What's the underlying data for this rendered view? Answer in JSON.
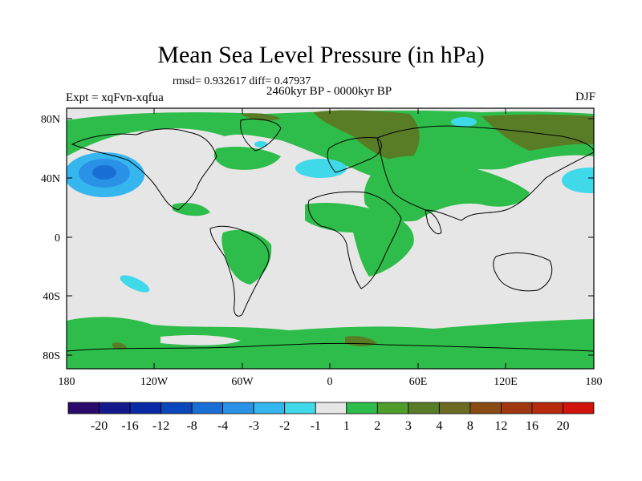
{
  "title": "Mean Sea Level Pressure (in hPa)",
  "stats": "rmsd= 0.932617  diff= 0.47937",
  "subtitle": "2460kyr BP - 0000kyr BP",
  "experiment": "Expt = xqFvn-xqfua",
  "season": "DJF",
  "map": {
    "lat_labels": [
      "80N",
      "40N",
      "0",
      "40S",
      "80S"
    ],
    "lon_labels": [
      "180",
      "120W",
      "60W",
      "0",
      "60E",
      "120E",
      "180"
    ]
  },
  "colorbar": {
    "colors": [
      "#2a0a6b",
      "#141a8c",
      "#0a2aa8",
      "#0a47bd",
      "#1a6fd6",
      "#2a92e6",
      "#36b6ef",
      "#3fd9ea",
      "#e6e6e6",
      "#2ebd4a",
      "#4f9e2c",
      "#587d26",
      "#6b6b22",
      "#8a4a14",
      "#a0380f",
      "#b82a0c",
      "#d0140a"
    ],
    "tick_labels": [
      "-20",
      "-16",
      "-12",
      "-8",
      "-4",
      "-3",
      "-2",
      "-1",
      "1",
      "2",
      "3",
      "4",
      "8",
      "12",
      "16",
      "20"
    ]
  }
}
